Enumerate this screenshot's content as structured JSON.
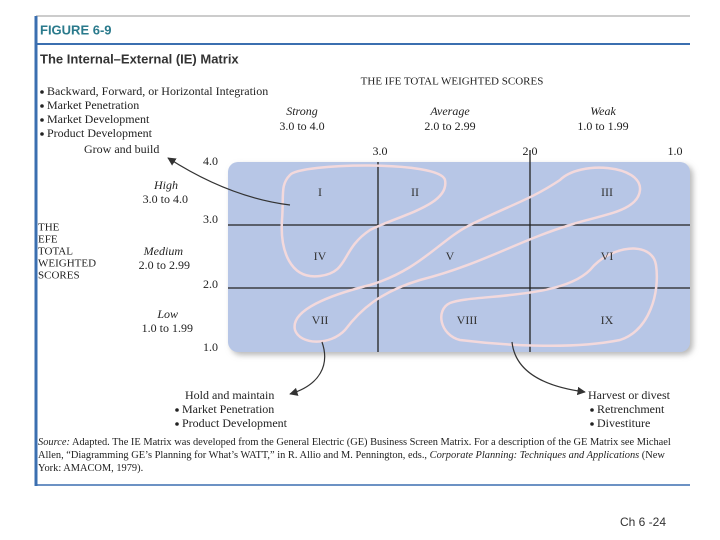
{
  "figure": {
    "label": "FIGURE 6-9",
    "title": "The Internal–External (IE) Matrix"
  },
  "grow": {
    "items": [
      "Backward, Forward, or Horizontal Integration",
      "Market Penetration",
      "Market Development",
      "Product Development"
    ],
    "label": "Grow and build"
  },
  "ife": {
    "title": "THE IFE TOTAL WEIGHTED SCORES",
    "columns": [
      {
        "name": "Strong",
        "range": "3.0 to 4.0"
      },
      {
        "name": "Average",
        "range": "2.0 to 2.99"
      },
      {
        "name": "Weak",
        "range": "1.0 to 1.99"
      }
    ],
    "scale": [
      "3.0",
      "2.0",
      "1.0"
    ]
  },
  "efe": {
    "title": [
      "THE",
      "EFE",
      "TOTAL",
      "WEIGHTED",
      "SCORES"
    ],
    "rows": [
      {
        "name": "High",
        "range": "3.0 to 4.0"
      },
      {
        "name": "Medium",
        "range": "2.0 to 2.99"
      },
      {
        "name": "Low",
        "range": "1.0 to 1.99"
      }
    ],
    "scale": [
      "4.0",
      "3.0",
      "2.0",
      "1.0"
    ]
  },
  "cells": [
    "I",
    "II",
    "III",
    "IV",
    "V",
    "VI",
    "VII",
    "VIII",
    "IX"
  ],
  "hold": {
    "label": "Hold and maintain",
    "items": [
      "Market Penetration",
      "Product Development"
    ]
  },
  "harvest": {
    "label": "Harvest or divest",
    "items": [
      "Retrenchment",
      "Divestiture"
    ]
  },
  "source": {
    "label": "Source:",
    "text": "Adapted. The IE Matrix was developed from the General Electric (GE) Business Screen Matrix. For a description of the GE Matrix see Michael Allen, “Diagramming GE’s Planning for What’s WATT,” in R. Allio and M. Pennington, eds.,",
    "book": "Corporate Planning: Techniques and Applications",
    "end": "(New York: AMACOM, 1979)."
  },
  "footer": "Ch 6 -24"
}
